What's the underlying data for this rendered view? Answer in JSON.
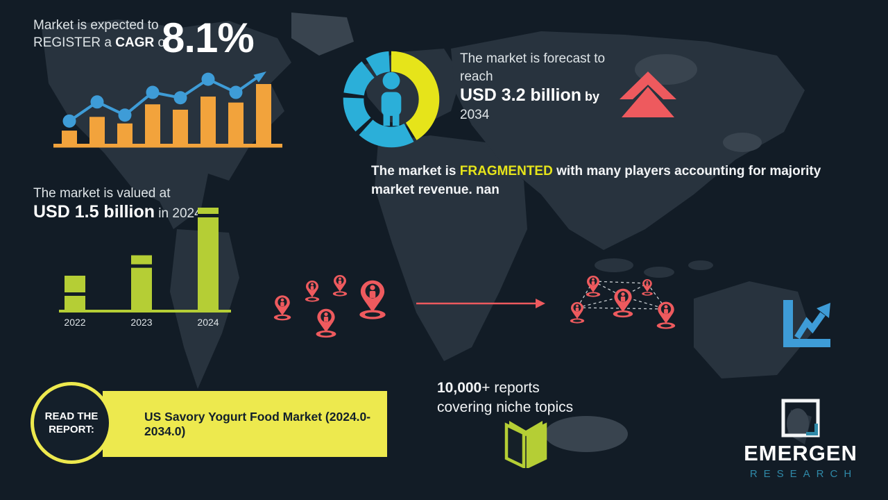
{
  "colors": {
    "background": "#121C26",
    "map": "#28333E",
    "map_light": "#39444F",
    "orange": "#F2A33C",
    "blue": "#3E9CD7",
    "donut_blue": "#2BAFD9",
    "yellow": "#E6E41A",
    "banner_yellow": "#EDE94E",
    "green": "#B5CE35",
    "red": "#EE5A5E",
    "teal": "#2F89A8",
    "text_light": "#DEE4E7",
    "text_white": "#FFFFFF",
    "text_dark": "#13202B"
  },
  "cagr_block": {
    "line1": "Market is expected to",
    "line2_pre": "REGISTER a ",
    "line2_bold": "CAGR",
    "line2_post": " of",
    "value": "8.1%"
  },
  "forecast_block": {
    "line1": "The market is forecast to",
    "line2": "reach",
    "value": "USD 3.2 billion",
    "by_word": " by",
    "year": "2034"
  },
  "fragmented_block": {
    "pre": "The market is ",
    "highlight": "FRAGMENTED",
    "post": " with many players accounting for majority market revenue. nan"
  },
  "valued_block": {
    "line1": "The market is valued at",
    "value": "USD 1.5 billion",
    "suffix": " in 2024"
  },
  "report_block": {
    "circle_label": "READ THE REPORT:",
    "banner_label": "US Savory Yogurt Food Market (2024.0-2034.0)"
  },
  "reports_block": {
    "count": "10,000",
    "count_suffix": "+ reports",
    "line2": "covering niche topics"
  },
  "logo": {
    "name": "EMERGEN",
    "sub": "RESEARCH"
  },
  "chart_data": [
    {
      "id": "chart-growth",
      "type": "bar+line",
      "title": "Market is expected to REGISTER a CAGR of 8.1%",
      "note": "decorative growth chart, no axis labels shown",
      "bar_values_rel": [
        22,
        45,
        34,
        66,
        57,
        79,
        69,
        100
      ],
      "line_values_rel": [
        38,
        70,
        48,
        86,
        77,
        108,
        86
      ],
      "trend": "up-arrow at end"
    },
    {
      "id": "chart-valuation",
      "type": "bar",
      "title": "The market is valued at USD 1.5 billion in 2024",
      "categories": [
        "2022",
        "2023",
        "2024"
      ],
      "values": [
        0.5,
        0.8,
        1.5
      ],
      "unit": "USD billion",
      "ylim": [
        0,
        1.5
      ],
      "grid": false
    },
    {
      "id": "chart-share",
      "type": "donut",
      "title": "market composition donut with person pictogram",
      "segments": [
        {
          "label": "yellow",
          "start_deg": 0,
          "sweep_deg": 148
        },
        {
          "label": "blue",
          "start_deg": 152,
          "sweep_deg": 70
        },
        {
          "label": "blue",
          "start_deg": 228,
          "sweep_deg": 44
        },
        {
          "label": "blue",
          "start_deg": 278,
          "sweep_deg": 44
        },
        {
          "label": "blue",
          "start_deg": 328,
          "sweep_deg": 29
        }
      ],
      "legend": false
    }
  ]
}
